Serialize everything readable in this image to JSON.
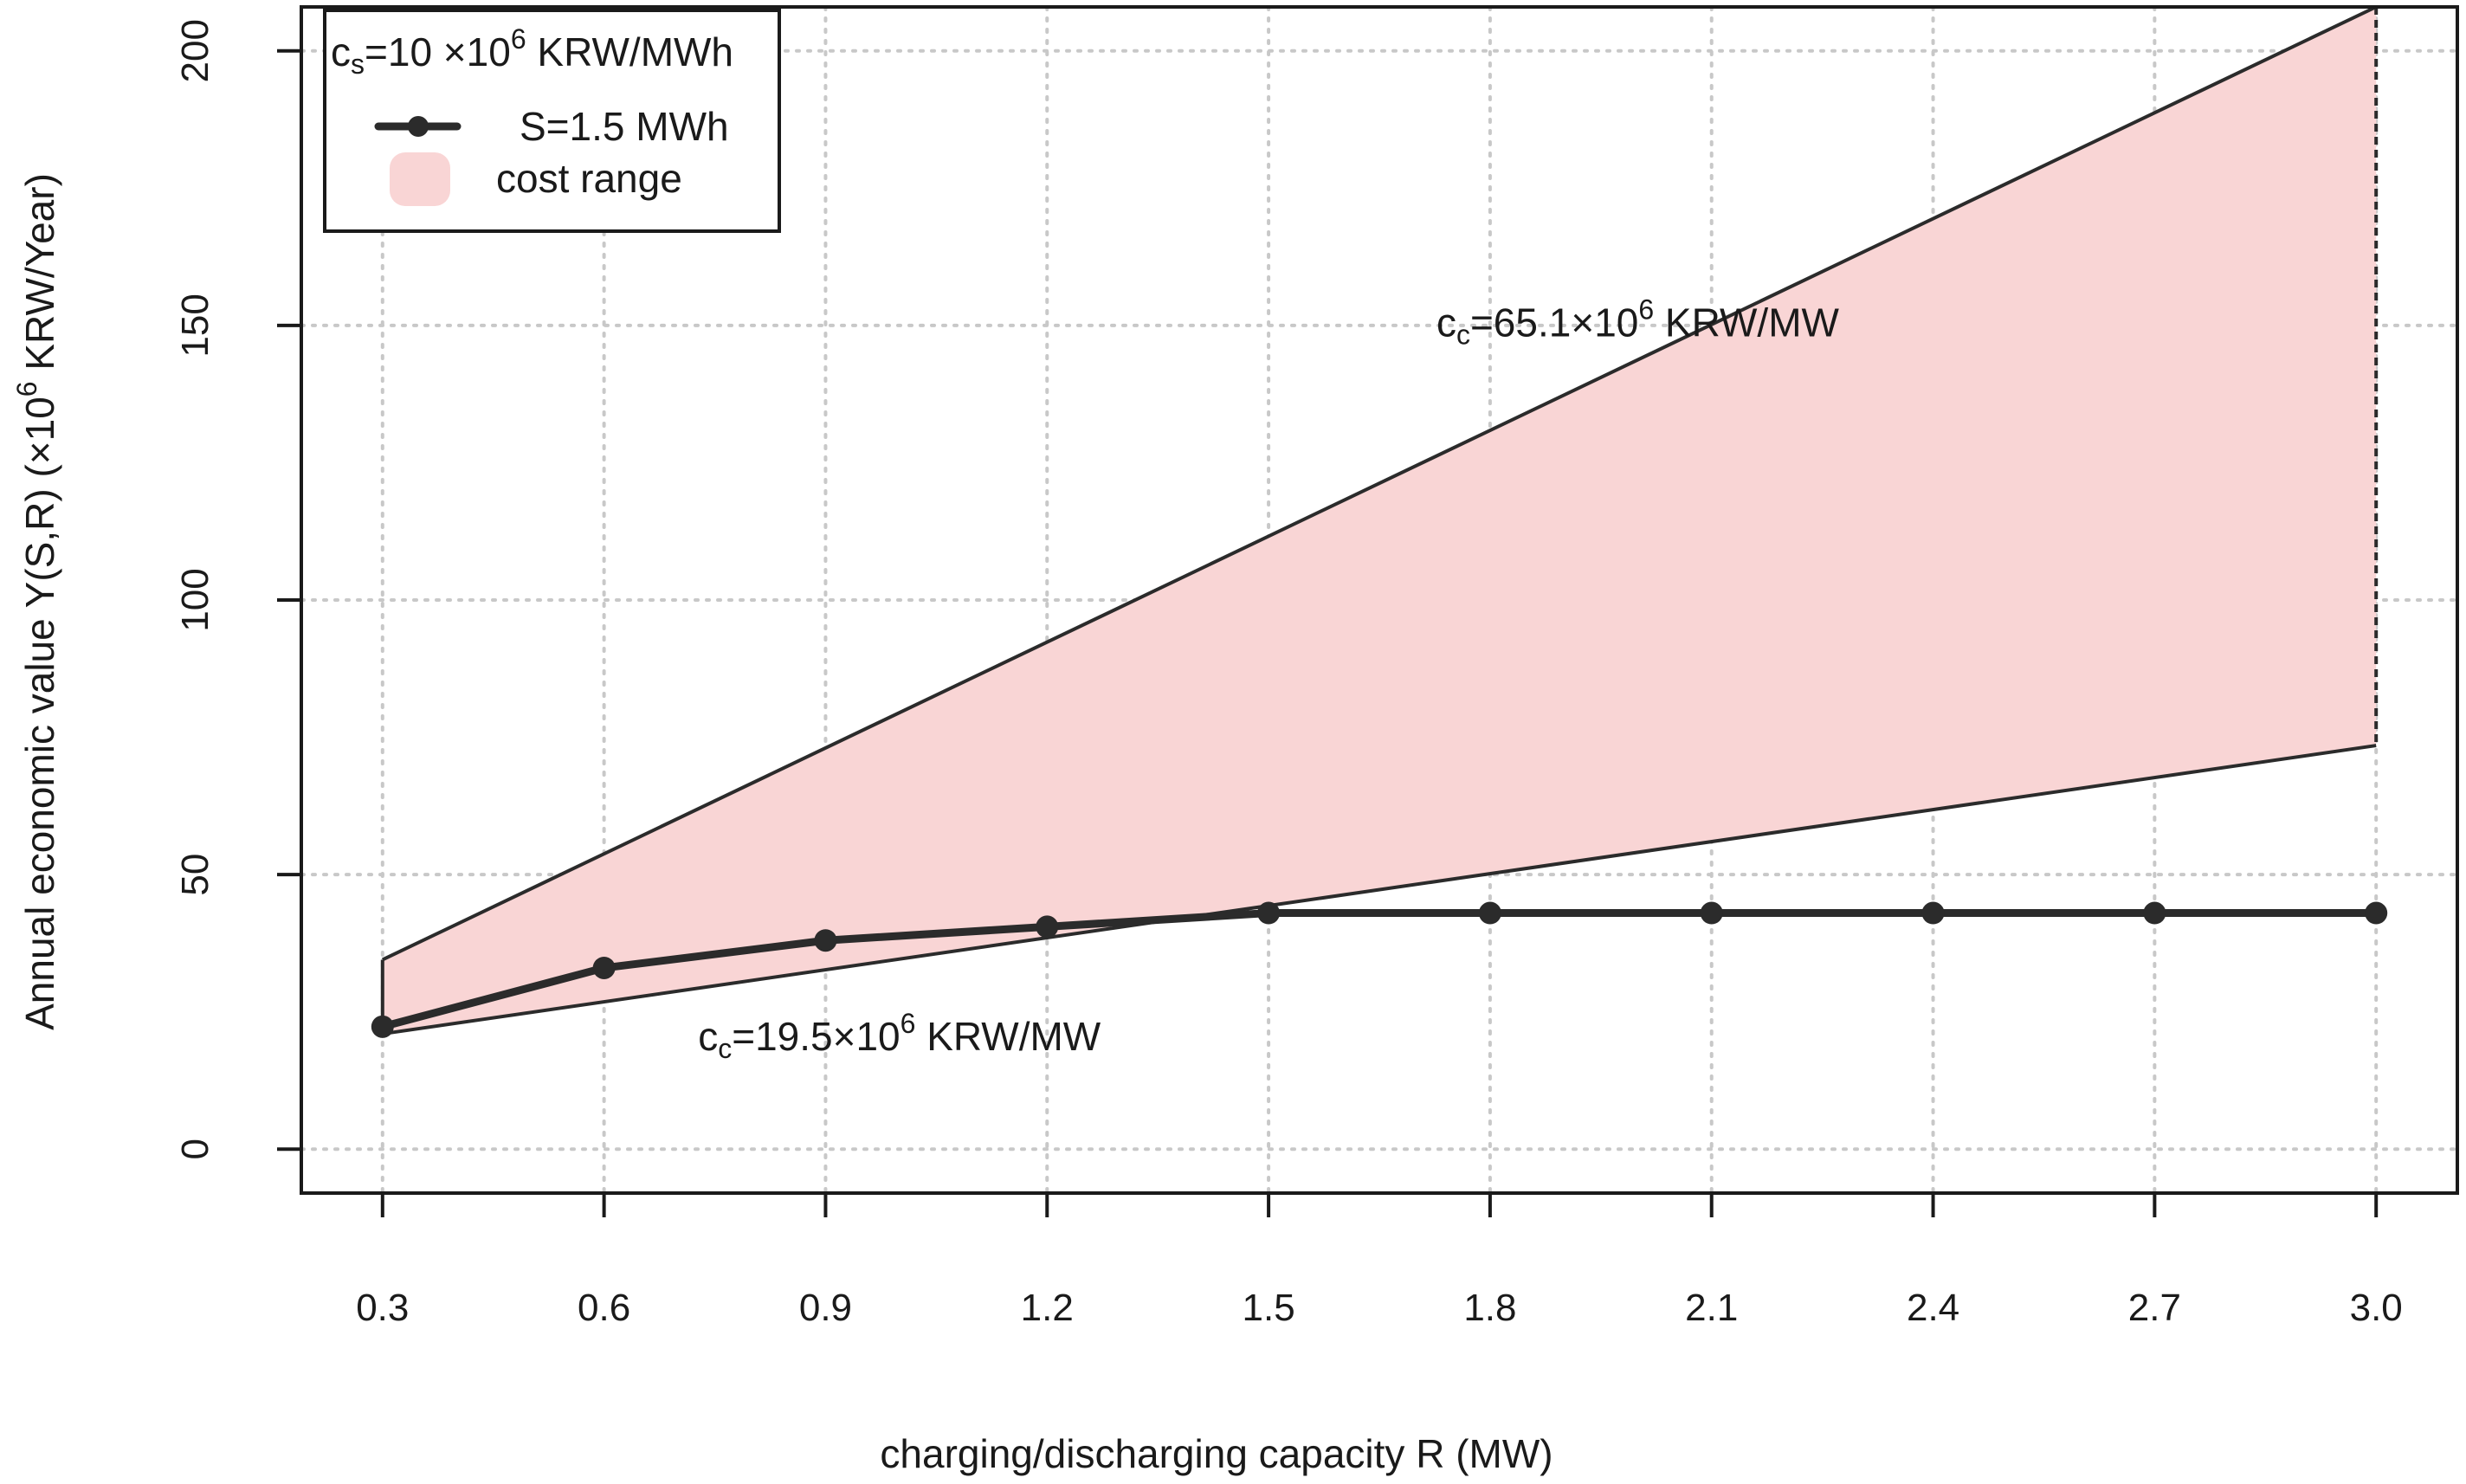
{
  "chart_data": {
    "type": "line",
    "x": [
      0.3,
      0.6,
      0.9,
      1.2,
      1.5,
      1.8,
      2.1,
      2.4,
      2.7,
      3.0
    ],
    "series": [
      {
        "name": "S=1.5 MWh",
        "values": [
          22.3,
          33.0,
          38.0,
          40.5,
          43.0,
          43.0,
          43.0,
          43.0,
          43.0,
          43.0
        ]
      }
    ],
    "band": {
      "name": "cost range",
      "x": [
        0.3,
        3.0
      ],
      "upper": [
        34.5,
        208.0
      ],
      "lower": [
        21.0,
        73.5
      ]
    },
    "annotations": [
      {
        "id": "upper",
        "prefix": "c",
        "subscript": "c",
        "middle": "=65.1×10",
        "superscript": "6",
        "suffix": " KRW/MW",
        "at": [
          2.0,
          148
        ]
      },
      {
        "id": "lower",
        "prefix": "c",
        "subscript": "c",
        "middle": "=19.5×10",
        "superscript": "6",
        "suffix": " KRW/MW",
        "at": [
          1.0,
          18
        ]
      }
    ],
    "legend": {
      "title_prefix": "c",
      "title_subscript": "s",
      "title_middle": "=10 ×10",
      "title_superscript": "6",
      "title_suffix": " KRW/MWh",
      "line_label": "S=1.5 MWh",
      "band_label": "cost range",
      "position": "top-left"
    },
    "xlabel": "charging/discharging capacity R (MW)",
    "ylabel_main": "Annual economic value Y(S,R) (×10",
    "ylabel_sup": "6",
    "ylabel_tail": " KRW/Year)",
    "x_ticks": [
      0.3,
      0.6,
      0.9,
      1.2,
      1.5,
      1.8,
      2.1,
      2.4,
      2.7,
      3.0
    ],
    "x_tick_labels": [
      "0.3",
      "0.6",
      "0.9",
      "1.2",
      "1.5",
      "1.8",
      "2.1",
      "2.4",
      "2.7",
      "3.0"
    ],
    "y_ticks": [
      0,
      50,
      100,
      150,
      200
    ],
    "y_tick_labels": [
      "0",
      "50",
      "100",
      "150",
      "200"
    ],
    "xlim": [
      0.19,
      3.11
    ],
    "ylim": [
      -8,
      208
    ],
    "grid": true,
    "colors": {
      "band_fill": "#f9d5d5",
      "line": "#2b2b2b",
      "axis": "#1a1a1a",
      "grid": "#c8c8c8"
    }
  }
}
